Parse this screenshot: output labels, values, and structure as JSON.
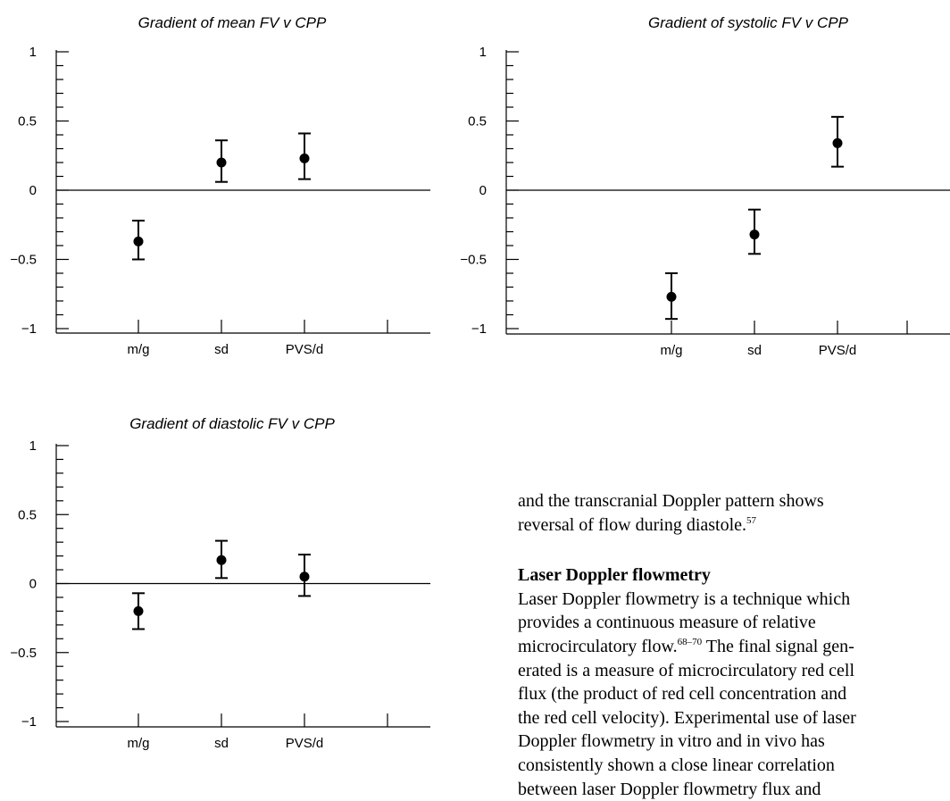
{
  "charts": [
    {
      "type": "scatter",
      "title": "Gradient of mean FV v CPP",
      "categories": [
        "m/g",
        "sd",
        "PVS/d"
      ],
      "ylim": [
        -1,
        1
      ],
      "yticks": [
        "1",
        "0.5",
        "0",
        "-0.5",
        "-1"
      ],
      "values": [
        -0.37,
        0.2,
        0.23
      ],
      "lower": [
        -0.5,
        0.06,
        0.08
      ],
      "upper": [
        -0.22,
        0.36,
        0.41
      ]
    },
    {
      "type": "scatter",
      "title": "Gradient of systolic FV v CPP",
      "categories": [
        "m/g",
        "sd",
        "PVS/d"
      ],
      "ylim": [
        -1,
        1
      ],
      "yticks": [
        "1",
        "0.5",
        "0",
        "-0.5",
        "-1"
      ],
      "values": [
        -0.77,
        -0.32,
        0.34
      ],
      "lower": [
        -0.93,
        -0.46,
        0.17
      ],
      "upper": [
        -0.6,
        -0.14,
        0.53
      ]
    },
    {
      "type": "scatter",
      "title": "Gradient of diastolic FV v CPP",
      "categories": [
        "m/g",
        "sd",
        "PVS/d"
      ],
      "ylim": [
        -1,
        1
      ],
      "yticks": [
        "1",
        "0.5",
        "0",
        "-0.5",
        "-1"
      ],
      "values": [
        -0.2,
        0.17,
        0.05
      ],
      "lower": [
        -0.33,
        0.04,
        -0.09
      ],
      "upper": [
        -0.07,
        0.31,
        0.21
      ]
    }
  ],
  "text": {
    "para1_lines": [
      "and the transcranial Doppler pattern shows",
      "reversal of flow during diastole."
    ],
    "para1_ref": "57",
    "heading": "Laser Doppler flowmetry",
    "para2_line1": "Laser Doppler flowmetry is a technique which",
    "para2_line2": "provides a continuous measure of relative",
    "para2_line3_a": "microcirculatory flow.",
    "para2_line3_ref": "68–70",
    "para2_line3_b": " The final signal gen-",
    "para2_rest": [
      "erated is a measure of microcirculatory red cell",
      "flux (the product of red cell concentration and",
      "the red cell velocity). Experimental use of laser",
      "Doppler flowmetry in vitro and in vivo has",
      "consistently shown a close linear correlation",
      "between laser Doppler flowmetry flux and"
    ]
  }
}
